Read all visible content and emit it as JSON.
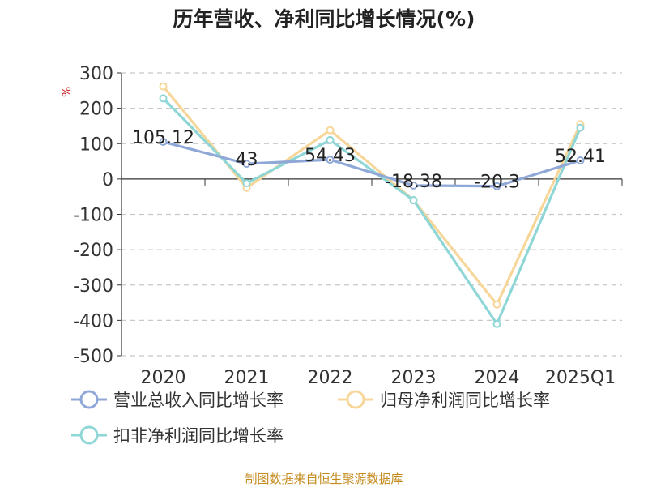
{
  "chart_data": {
    "type": "line",
    "title": "历年营收、净利同比增长情况(%)",
    "ylabel": "%",
    "xlabel": "",
    "categories": [
      "2020",
      "2021",
      "2022",
      "2023",
      "2024",
      "2025Q1"
    ],
    "ylim": [
      -500,
      300
    ],
    "yticks": [
      300,
      200,
      100,
      0,
      -100,
      -200,
      -300,
      -400,
      -500
    ],
    "grid": true,
    "legend_position": "bottom",
    "series": [
      {
        "name": "营业总收入同比增长率",
        "color": "#8fa8d8",
        "values": [
          105.12,
          43,
          54.43,
          -18.38,
          -20.3,
          52.41
        ],
        "labels": [
          "105.12",
          "43",
          "54.43",
          "-18.38",
          "-20.3",
          "52.41"
        ]
      },
      {
        "name": "归母净利润同比增长率",
        "color": "#f7d69a",
        "values": [
          262,
          -25,
          138,
          -60,
          -355,
          155
        ]
      },
      {
        "name": "扣非净利润同比增长率",
        "color": "#8fd6d6",
        "values": [
          228,
          -12,
          110,
          -60,
          -410,
          145
        ]
      }
    ]
  },
  "source": "制图数据来自恒生聚源数据库"
}
